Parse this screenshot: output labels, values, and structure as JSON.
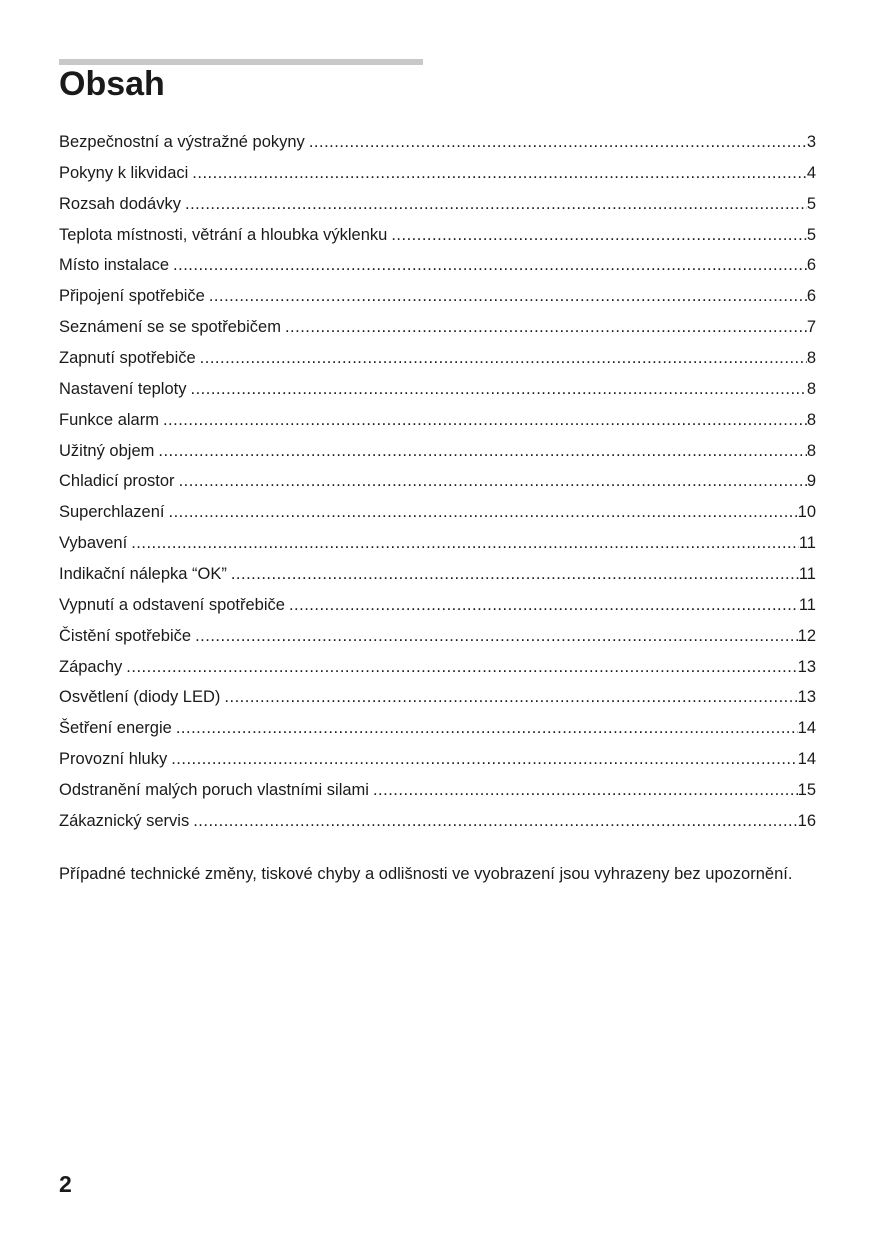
{
  "title": "Obsah",
  "toc": [
    {
      "label": "Bezpečnostní a výstražné pokyny",
      "page": "3"
    },
    {
      "label": "Pokyny k likvidaci",
      "page": "4"
    },
    {
      "label": "Rozsah dodávky",
      "page": "5"
    },
    {
      "label": "Teplota místnosti, větrání a hloubka výklenku",
      "page": "5"
    },
    {
      "label": "Místo instalace",
      "page": "6"
    },
    {
      "label": "Připojení spotřebiče",
      "page": "6"
    },
    {
      "label": "Seznámení se se spotřebičem",
      "page": "7"
    },
    {
      "label": "Zapnutí spotřebiče",
      "page": "8"
    },
    {
      "label": "Nastavení teploty",
      "page": "8"
    },
    {
      "label": "Funkce alarm",
      "page": "8"
    },
    {
      "label": "Užitný objem",
      "page": "8"
    },
    {
      "label": "Chladicí prostor",
      "page": "9"
    },
    {
      "label": "Superchlazení",
      "page": "10"
    },
    {
      "label": "Vybavení",
      "page": "11"
    },
    {
      "label": "Indikační nálepka “OK”",
      "page": "11"
    },
    {
      "label": "Vypnutí a odstavení spotřebiče",
      "page": "11"
    },
    {
      "label": "Čistění spotřebiče",
      "page": "12"
    },
    {
      "label": "Zápachy",
      "page": "13"
    },
    {
      "label": "Osvětlení (diody LED)",
      "page": "13"
    },
    {
      "label": "Šetření energie",
      "page": "14"
    },
    {
      "label": "Provozní hluky",
      "page": "14"
    },
    {
      "label": "Odstranění malých poruch vlastními silami",
      "page": "15"
    },
    {
      "label": "Zákaznický servis",
      "page": "16"
    }
  ],
  "note": "Případné technické změny, tiskové chyby a odlišnosti ve vyobrazení jsou vyhrazeny bez upozornění.",
  "page_number": "2"
}
